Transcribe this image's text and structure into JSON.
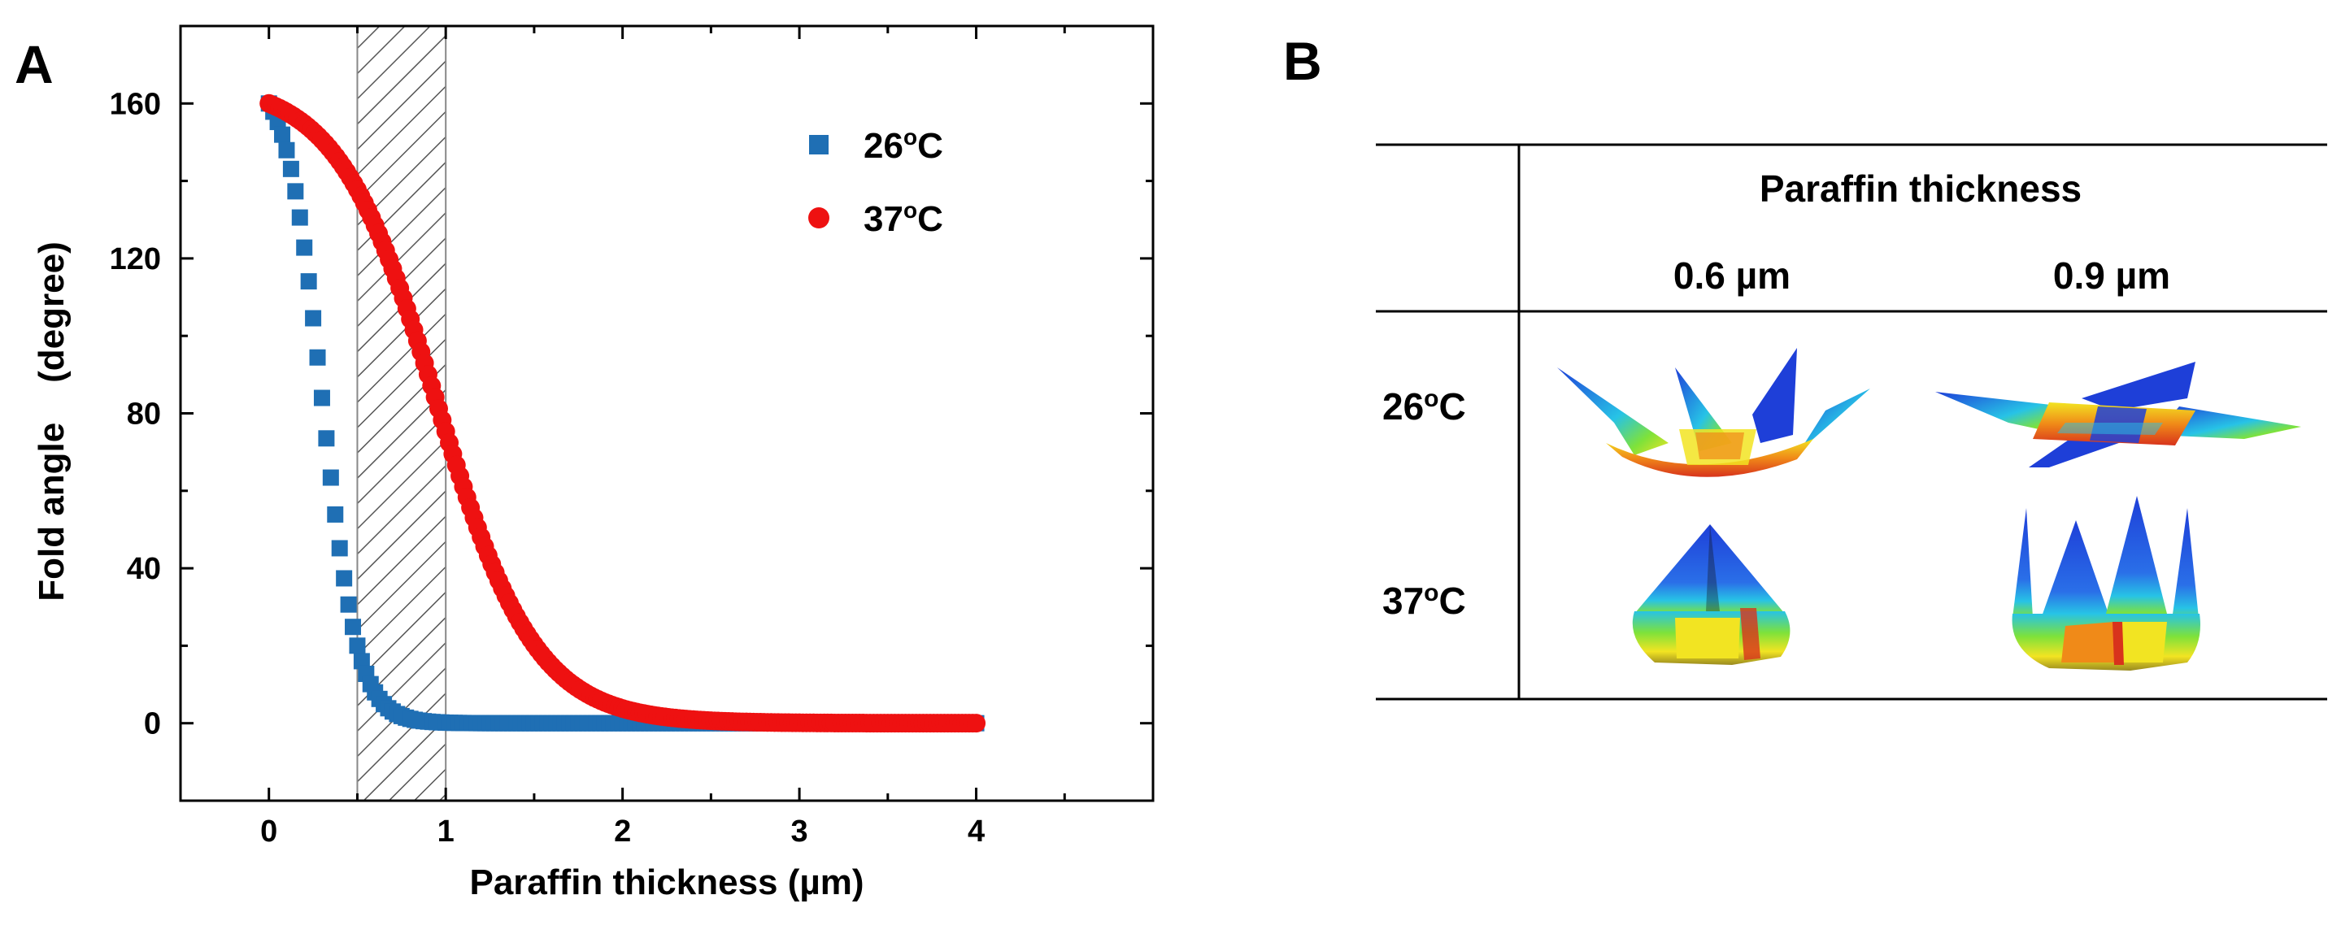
{
  "panel_a_label": "A",
  "panel_b_label": "B",
  "chart_data": {
    "type": "scatter",
    "title": "",
    "xlabel": "Paraffin thickness (µm)",
    "ylabel": "Fold angle    (degree)",
    "xlim": [
      -0.5,
      5.0
    ],
    "ylim": [
      -20,
      180
    ],
    "xticks": [
      0,
      1,
      2,
      3,
      4
    ],
    "yticks": [
      0,
      40,
      80,
      120,
      160
    ],
    "shaded_region": [
      0.5,
      1.0
    ],
    "legend_position": "top-right",
    "series": [
      {
        "name": "26",
        "unit": "°C",
        "deg": "o",
        "unit_letter": "C",
        "marker": "square",
        "color": "#1f6fb4",
        "model": {
          "max": 160,
          "x0": 0.3,
          "k": 0.1,
          "tail": 0.0
        }
      },
      {
        "name": "37",
        "unit": "°C",
        "deg": "o",
        "unit_letter": "C",
        "marker": "circle",
        "color": "#ee1111",
        "model": {
          "max": 160,
          "x0": 0.95,
          "k": 0.28,
          "tail": 0.0
        }
      }
    ],
    "x_start": 0.0,
    "x_end": 4.0,
    "x_step": 0.025
  },
  "table": {
    "header": "Paraffin thickness",
    "columns": [
      "0.6 µm",
      "0.9 µm"
    ],
    "rows": [
      {
        "temp": "26",
        "deg": "o",
        "unit": "C"
      },
      {
        "temp": "37",
        "deg": "o",
        "unit": "C"
      }
    ],
    "colors": {
      "blue": "#1e3fd8",
      "cyan": "#27c3e6",
      "green": "#7ee23a",
      "yellow": "#f2e422",
      "orange": "#f08a18",
      "red": "#d8331c"
    }
  }
}
